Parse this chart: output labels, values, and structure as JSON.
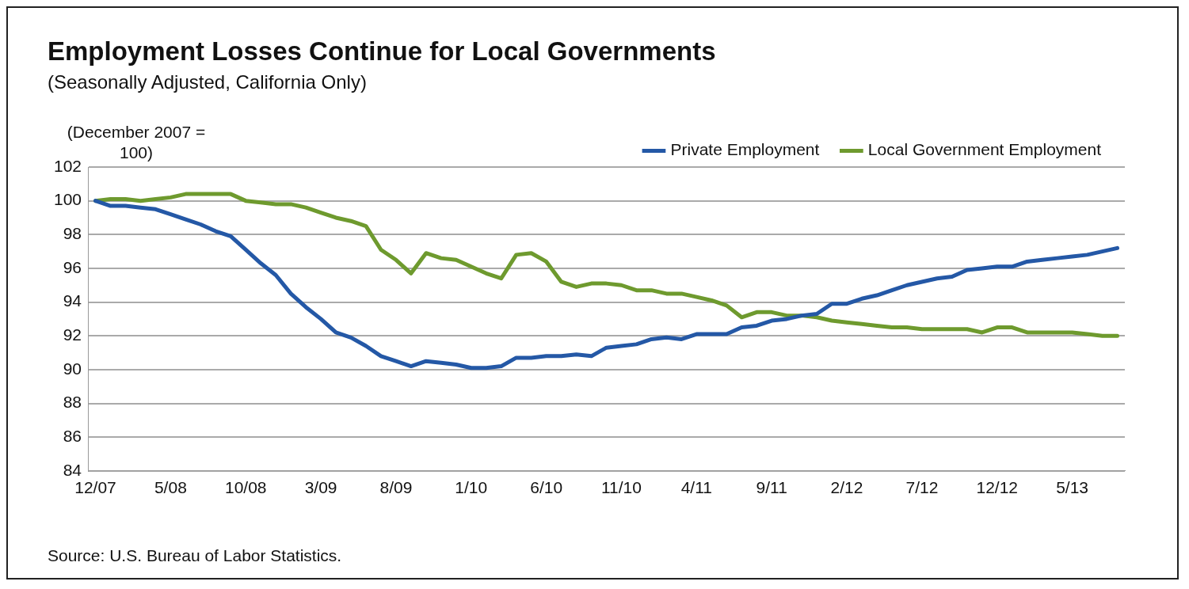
{
  "chart_data": {
    "type": "line",
    "title": "Employment Losses Continue for Local Governments",
    "subtitle": "(Seasonally Adjusted, California Only)",
    "ylabel": "(December 2007 = 100)",
    "annotations": [
      "Source: U.S. Bureau of Labor Statistics."
    ],
    "categories": [
      "12/07",
      null,
      null,
      null,
      null,
      "5/08",
      null,
      null,
      null,
      null,
      "10/08",
      null,
      null,
      null,
      null,
      "3/09",
      null,
      null,
      null,
      null,
      "8/09",
      null,
      null,
      null,
      null,
      "1/10",
      null,
      null,
      null,
      null,
      "6/10",
      null,
      null,
      null,
      null,
      "11/10",
      null,
      null,
      null,
      null,
      "4/11",
      null,
      null,
      null,
      null,
      "9/11",
      null,
      null,
      null,
      null,
      "2/12",
      null,
      null,
      null,
      null,
      "7/12",
      null,
      null,
      null,
      null,
      "12/12",
      null,
      null,
      null,
      null,
      "5/13",
      null,
      null,
      null
    ],
    "series": [
      {
        "name": "Private Employment",
        "color": "#2458a6",
        "values": [
          100,
          99.7,
          99.7,
          99.6,
          99.5,
          99.2,
          98.9,
          98.6,
          98.2,
          97.9,
          97.1,
          96.3,
          95.6,
          94.5,
          93.7,
          93.0,
          92.2,
          91.9,
          91.4,
          90.8,
          90.5,
          90.2,
          90.5,
          90.4,
          90.3,
          90.1,
          90.1,
          90.2,
          90.7,
          90.7,
          90.8,
          90.8,
          90.9,
          90.8,
          91.3,
          91.4,
          91.5,
          91.8,
          91.9,
          91.8,
          92.1,
          92.1,
          92.1,
          92.5,
          92.6,
          92.9,
          93.0,
          93.2,
          93.3,
          93.9,
          93.9,
          94.2,
          94.4,
          94.7,
          95.0,
          95.2,
          95.4,
          95.5,
          95.9,
          96.0,
          96.1,
          96.1,
          96.4,
          96.5,
          96.6,
          96.7,
          96.8,
          97.0,
          97.2
        ]
      },
      {
        "name": "Local Government Employment",
        "color": "#6e9a2e",
        "values": [
          100,
          100.1,
          100.1,
          100.0,
          100.1,
          100.2,
          100.4,
          100.4,
          100.4,
          100.4,
          100.0,
          99.9,
          99.8,
          99.8,
          99.6,
          99.3,
          99.0,
          98.8,
          98.5,
          97.1,
          96.5,
          95.7,
          96.9,
          96.6,
          96.5,
          96.1,
          95.7,
          95.4,
          96.8,
          96.9,
          96.4,
          95.2,
          94.9,
          95.1,
          95.1,
          95.0,
          94.7,
          94.7,
          94.5,
          94.5,
          94.3,
          94.1,
          93.8,
          93.1,
          93.4,
          93.4,
          93.2,
          93.2,
          93.1,
          92.9,
          92.8,
          92.7,
          92.6,
          92.5,
          92.5,
          92.4,
          92.4,
          92.4,
          92.4,
          92.2,
          92.5,
          92.5,
          92.2,
          92.2,
          92.2,
          92.2,
          92.1,
          92.0,
          92.0
        ]
      }
    ],
    "ylim": [
      84,
      102
    ],
    "yticks": [
      84,
      86,
      88,
      90,
      92,
      94,
      96,
      98,
      100,
      102
    ],
    "grid": "y",
    "legend": "top right",
    "marker": "none",
    "line_style": "solid"
  }
}
